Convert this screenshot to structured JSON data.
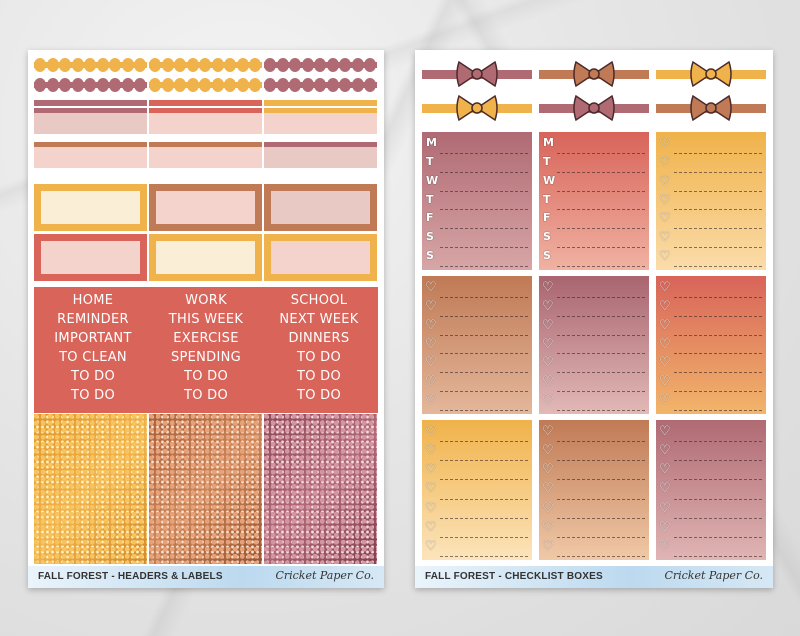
{
  "sheet_left": {
    "footer_title": "FALL FOREST - HEADERS & LABELS",
    "brand": "Cricket Paper Co.",
    "labels": [
      [
        "HOME",
        "REMINDER",
        "IMPORTANT",
        "TO CLEAN",
        "TO DO",
        "TO DO"
      ],
      [
        "WORK",
        "THIS WEEK",
        "EXERCISE",
        "SPENDING",
        "TO DO",
        "TO DO"
      ],
      [
        "SCHOOL",
        "NEXT WEEK",
        "DINNERS",
        "TO DO",
        "TO DO",
        "TO DO"
      ]
    ]
  },
  "sheet_right": {
    "footer_title": "FALL FOREST - CHECKLIST BOXES",
    "brand": "Cricket Paper Co.",
    "weekdays": [
      "M",
      "T",
      "W",
      "T",
      "F",
      "S",
      "S"
    ],
    "check_glyph": "♡"
  },
  "colors": {
    "mustard": "#f0b24a",
    "mauve": "#b06a73",
    "coral": "#d8645a",
    "terracotta": "#c07a55",
    "blush": "#f3d3cb",
    "cream": "#fbeed6",
    "dusty_pink": "#e8c9c4"
  }
}
